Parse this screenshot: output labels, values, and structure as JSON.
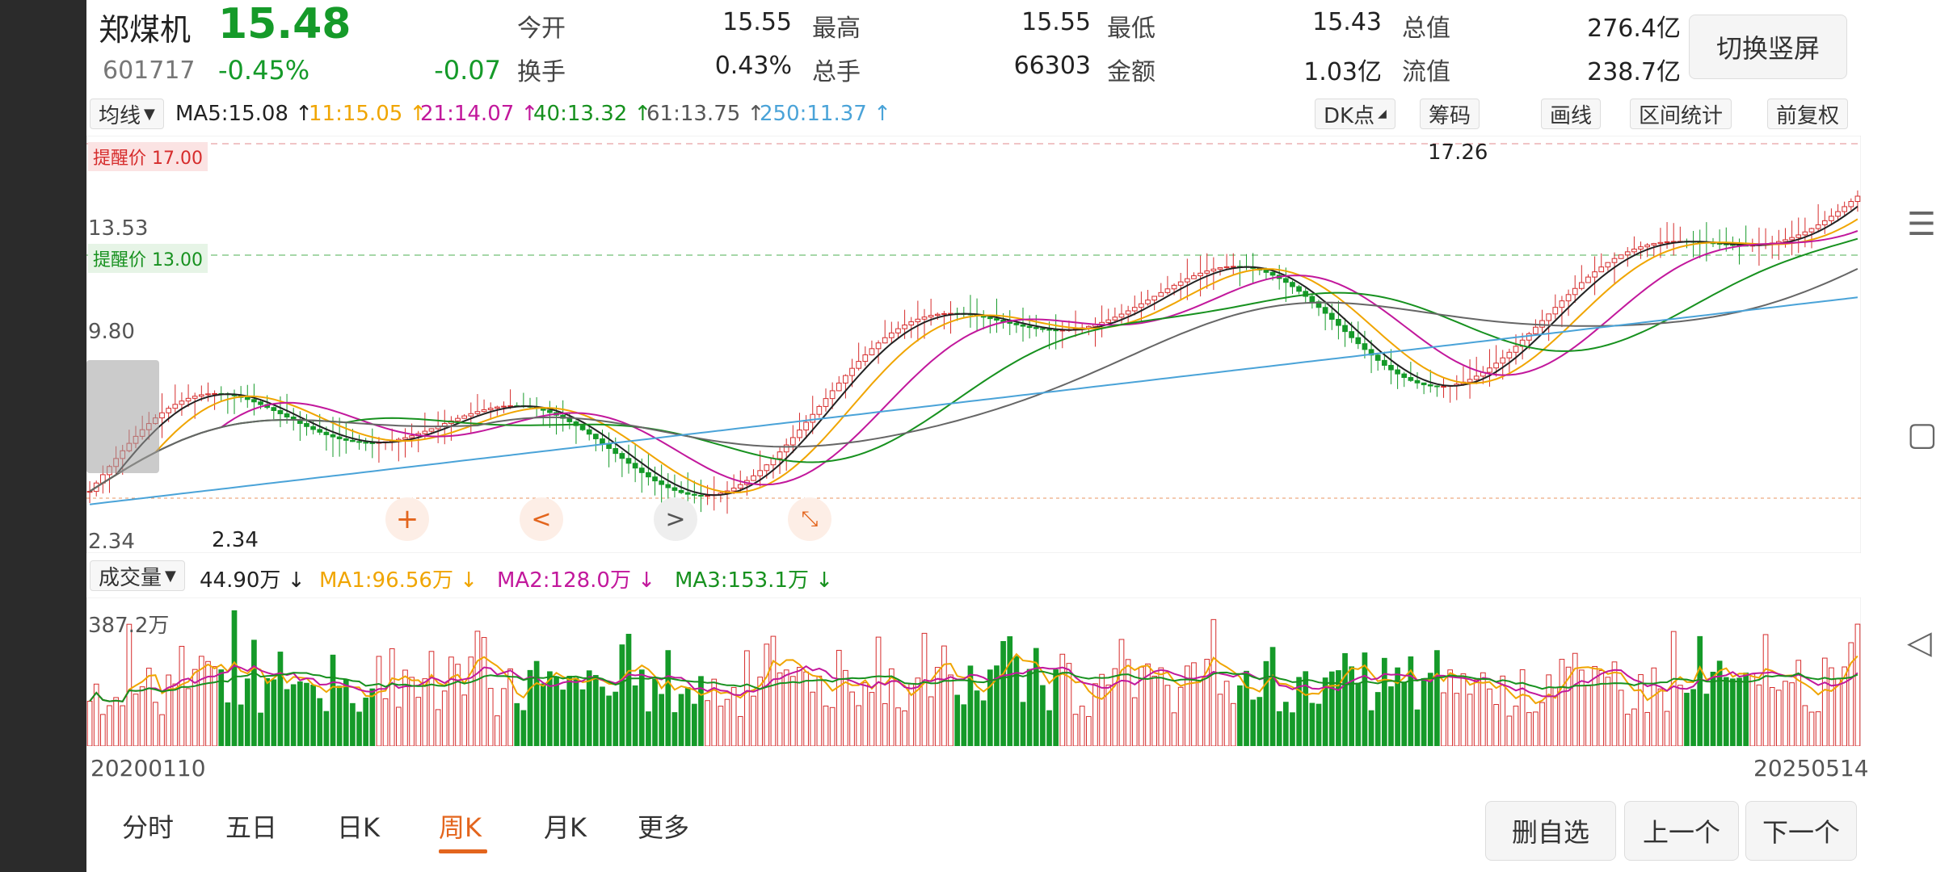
{
  "header": {
    "stock_name": "郑煤机",
    "price": "15.48",
    "code": "601717",
    "change_pct": "-0.45%",
    "change": "-0.07",
    "metrics": [
      {
        "label": "今开",
        "value": "15.55"
      },
      {
        "label": "最高",
        "value": "15.55"
      },
      {
        "label": "最低",
        "value": "15.43"
      },
      {
        "label": "总值",
        "value": "276.4亿"
      },
      {
        "label": "换手",
        "value": "0.43%"
      },
      {
        "label": "总手",
        "value": "66303"
      },
      {
        "label": "金额",
        "value": "1.03亿"
      },
      {
        "label": "流值",
        "value": "238.7亿"
      }
    ],
    "switch_button": "切换竖屏"
  },
  "ma_bar": {
    "selector": "均线",
    "ma5": "MA5:15.08 ↑",
    "ma11": "11:15.05 ↑",
    "ma21": "21:14.07 ↑",
    "ma40": "40:13.32 ↑",
    "ma61": "61:13.75 ↑",
    "ma250": "250:11.37 ↑",
    "dk": "DK点",
    "chips": "筹码",
    "draw": "画线",
    "range": "区间统计",
    "adjust": "前复权"
  },
  "price_panel": {
    "alert_high": "提醒价 17.00",
    "alert_low": "提醒价 13.00",
    "axis_labels": [
      "13.53",
      "9.80",
      "2.34"
    ],
    "max_label": "17.26",
    "min_label": "2.34",
    "plus_icon": "+",
    "prev_icon": "<",
    "next_icon": ">"
  },
  "volume_panel": {
    "selector": "成交量",
    "vol": "44.90万 ↓",
    "ma1": "MA1:96.56万 ↓",
    "ma2": "MA2:128.0万 ↓",
    "ma3": "MA3:153.1万 ↓",
    "axis_max": "387.2万"
  },
  "dates": {
    "start": "20200110",
    "end": "20250514"
  },
  "tabs": [
    "分时",
    "五日",
    "日K",
    "周K",
    "月K",
    "更多"
  ],
  "active_tab": "周K",
  "buttons": {
    "delete": "删自选",
    "prev": "上一个",
    "next": "下一个"
  },
  "colors": {
    "up": "#d62c2c",
    "down": "#159a29",
    "ma5": "#222222",
    "ma11": "#f0a500",
    "ma21": "#c2189c",
    "ma40": "#17911f",
    "ma61": "#666666",
    "ma250": "#4aa3d8",
    "accent": "#e3651d"
  },
  "chart_data": {
    "type": "candlestick",
    "price_range": [
      2.34,
      17.26
    ],
    "series": [
      {
        "name": "MA5",
        "value": 15.08
      },
      {
        "name": "11",
        "value": 15.05
      },
      {
        "name": "21",
        "value": 14.07
      },
      {
        "name": "40",
        "value": 13.32
      },
      {
        "name": "61",
        "value": 13.75
      },
      {
        "name": "250",
        "value": 11.37
      }
    ],
    "alerts": [
      17.0,
      13.0
    ],
    "x_range": [
      "20200110",
      "20250514"
    ]
  }
}
